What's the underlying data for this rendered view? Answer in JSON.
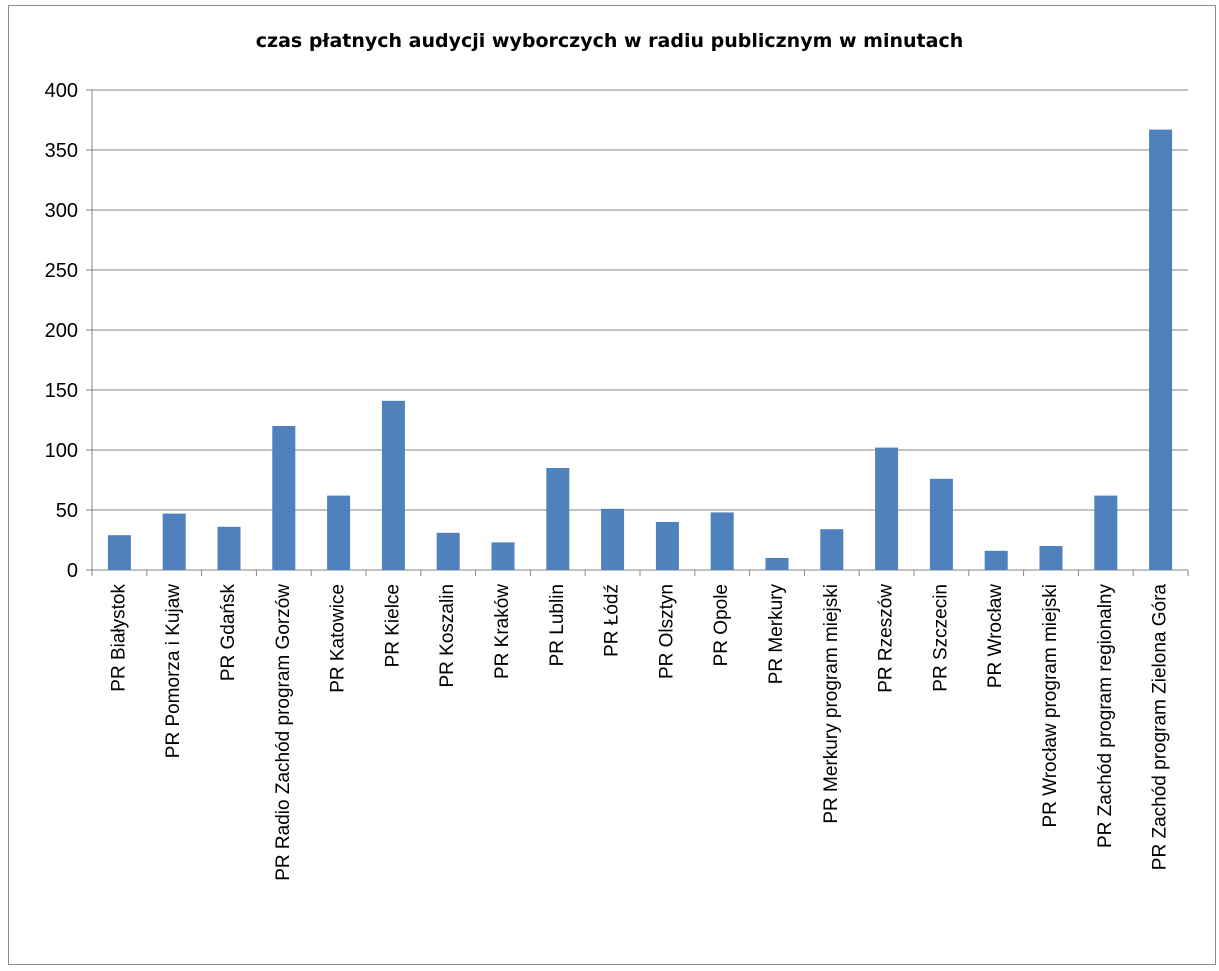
{
  "chart_data": {
    "type": "bar",
    "title": "czas płatnych audycji wyborczych w radiu publicznym w minutach",
    "xlabel": "",
    "ylabel": "",
    "ylim": [
      0,
      400
    ],
    "yticks": [
      "0",
      "50",
      "100",
      "150",
      "200",
      "250",
      "300",
      "350",
      "400"
    ],
    "grid": true,
    "legend": "none",
    "bar_color": "#4f81bd",
    "grid_color": "#868686",
    "categories": [
      "PR Białystok",
      "PR Pomorza i Kujaw",
      "PR Gdańsk",
      "PR Radio Zachód program Gorzów",
      "PR Katowice",
      "PR Kielce",
      "PR Koszalin",
      "PR Kraków",
      "PR Lublin",
      "PR Łódź",
      "PR Olsztyn",
      "PR Opole",
      "PR Merkury",
      "PR Merkury program miejski",
      "PR Rzeszów",
      "PR Szczecin",
      "PR Wrocław",
      "PR Wrocław program miejski",
      "PR Zachód program regionalny",
      "PR Zachód program Zielona Góra"
    ],
    "values": [
      29,
      47,
      36,
      120,
      62,
      141,
      31,
      23,
      85,
      51,
      40,
      48,
      10,
      34,
      102,
      76,
      16,
      20,
      62,
      367
    ]
  }
}
